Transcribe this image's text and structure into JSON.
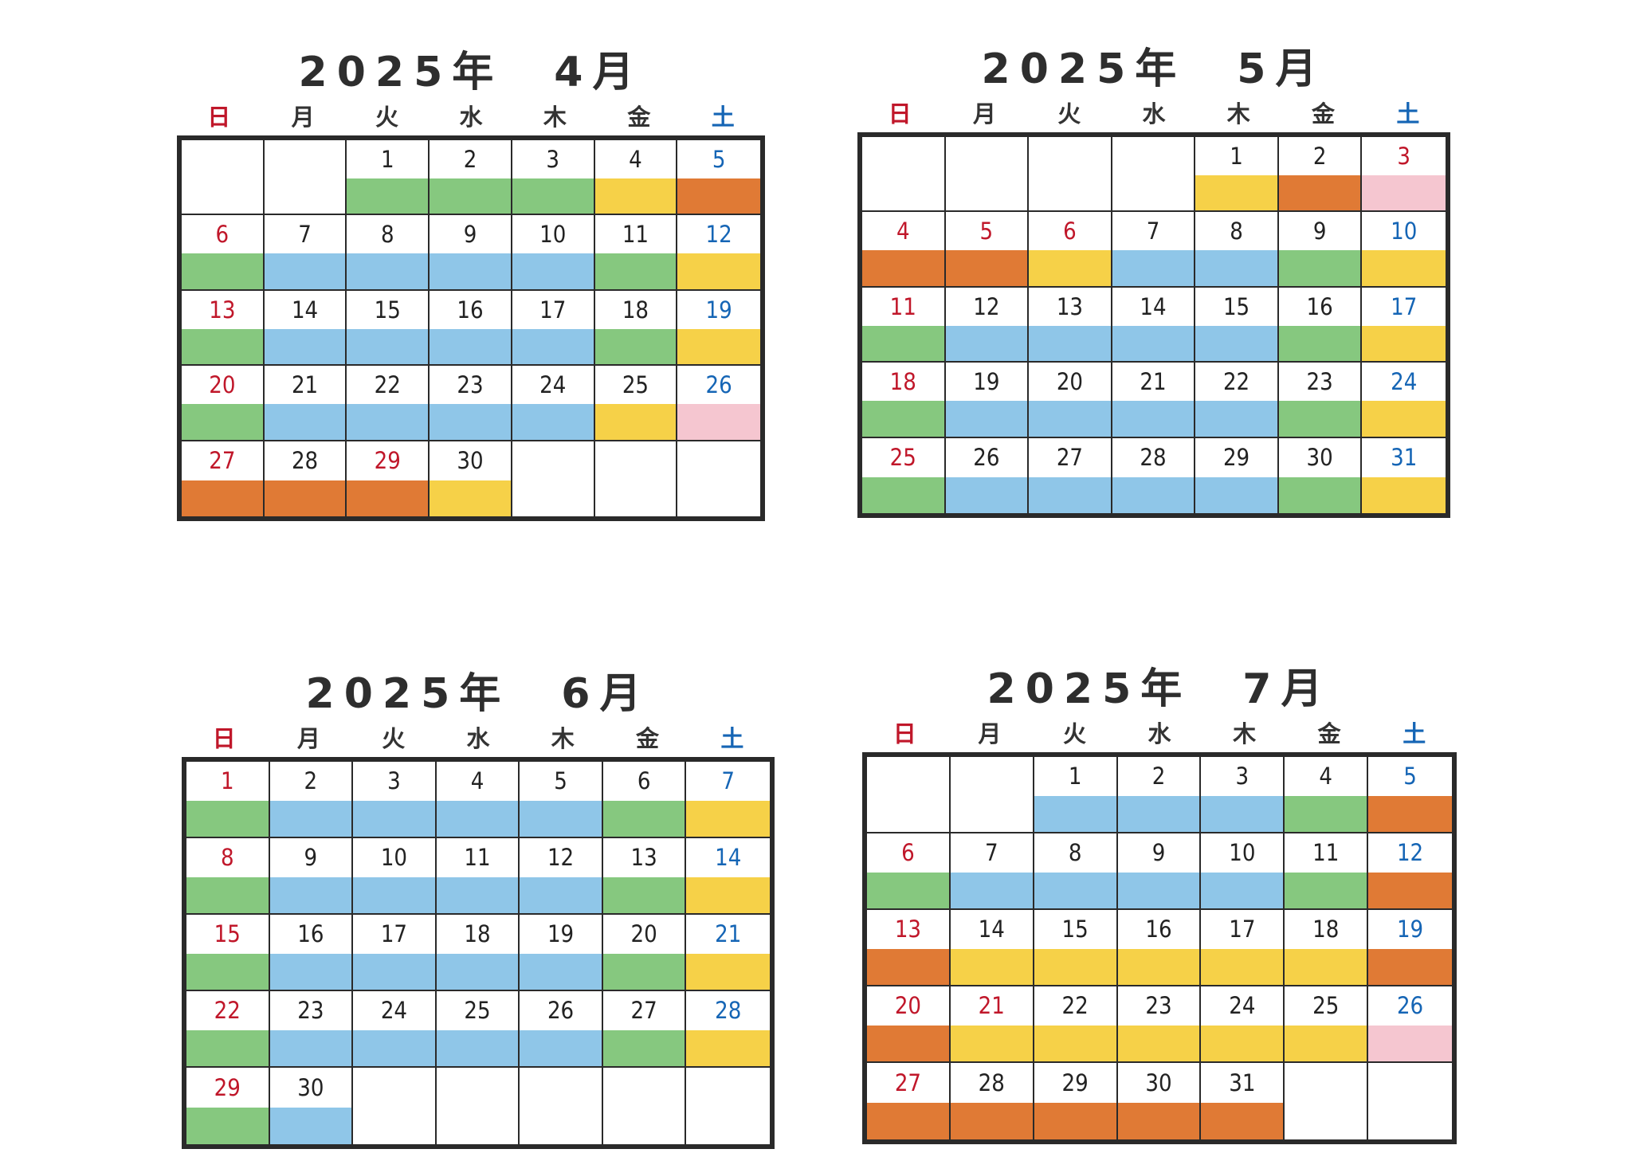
{
  "weekdays": [
    "日",
    "月",
    "火",
    "水",
    "木",
    "金",
    "土"
  ],
  "colors": {
    "sunday_text": "#c0172a",
    "saturday_text": "#1565b5",
    "weekday_text": "#222222",
    "band": {
      "blue": "#8fc6e8",
      "green": "#86c87f",
      "yellow": "#f6d148",
      "orange": "#e07a35",
      "pink": "#f5c6d0"
    }
  },
  "months": [
    {
      "title": "2025年　4月",
      "cells": [
        {
          "day": "",
          "band": ""
        },
        {
          "day": "",
          "band": ""
        },
        {
          "day": "1",
          "band": "green"
        },
        {
          "day": "2",
          "band": "green"
        },
        {
          "day": "3",
          "band": "green"
        },
        {
          "day": "4",
          "band": "yellow"
        },
        {
          "day": "5",
          "band": "orange"
        },
        {
          "day": "6",
          "band": "green"
        },
        {
          "day": "7",
          "band": "blue"
        },
        {
          "day": "8",
          "band": "blue"
        },
        {
          "day": "9",
          "band": "blue"
        },
        {
          "day": "10",
          "band": "blue"
        },
        {
          "day": "11",
          "band": "green"
        },
        {
          "day": "12",
          "band": "yellow"
        },
        {
          "day": "13",
          "band": "green"
        },
        {
          "day": "14",
          "band": "blue"
        },
        {
          "day": "15",
          "band": "blue"
        },
        {
          "day": "16",
          "band": "blue"
        },
        {
          "day": "17",
          "band": "blue"
        },
        {
          "day": "18",
          "band": "green"
        },
        {
          "day": "19",
          "band": "yellow"
        },
        {
          "day": "20",
          "band": "green"
        },
        {
          "day": "21",
          "band": "blue"
        },
        {
          "day": "22",
          "band": "blue"
        },
        {
          "day": "23",
          "band": "blue"
        },
        {
          "day": "24",
          "band": "blue"
        },
        {
          "day": "25",
          "band": "yellow"
        },
        {
          "day": "26",
          "band": "pink"
        },
        {
          "day": "27",
          "band": "orange"
        },
        {
          "day": "28",
          "band": "orange"
        },
        {
          "day": "29",
          "band": "orange",
          "holiday": true
        },
        {
          "day": "30",
          "band": "yellow"
        },
        {
          "day": "",
          "band": ""
        },
        {
          "day": "",
          "band": ""
        },
        {
          "day": "",
          "band": ""
        }
      ]
    },
    {
      "title": "2025年　5月",
      "cells": [
        {
          "day": "",
          "band": ""
        },
        {
          "day": "",
          "band": ""
        },
        {
          "day": "",
          "band": ""
        },
        {
          "day": "",
          "band": ""
        },
        {
          "day": "1",
          "band": "yellow"
        },
        {
          "day": "2",
          "band": "orange"
        },
        {
          "day": "3",
          "band": "pink",
          "holiday": true
        },
        {
          "day": "4",
          "band": "orange"
        },
        {
          "day": "5",
          "band": "orange",
          "holiday": true
        },
        {
          "day": "6",
          "band": "yellow",
          "holiday": true
        },
        {
          "day": "7",
          "band": "blue"
        },
        {
          "day": "8",
          "band": "blue"
        },
        {
          "day": "9",
          "band": "green"
        },
        {
          "day": "10",
          "band": "yellow"
        },
        {
          "day": "11",
          "band": "green"
        },
        {
          "day": "12",
          "band": "blue"
        },
        {
          "day": "13",
          "band": "blue"
        },
        {
          "day": "14",
          "band": "blue"
        },
        {
          "day": "15",
          "band": "blue"
        },
        {
          "day": "16",
          "band": "green"
        },
        {
          "day": "17",
          "band": "yellow"
        },
        {
          "day": "18",
          "band": "green"
        },
        {
          "day": "19",
          "band": "blue"
        },
        {
          "day": "20",
          "band": "blue"
        },
        {
          "day": "21",
          "band": "blue"
        },
        {
          "day": "22",
          "band": "blue"
        },
        {
          "day": "23",
          "band": "green"
        },
        {
          "day": "24",
          "band": "yellow"
        },
        {
          "day": "25",
          "band": "green"
        },
        {
          "day": "26",
          "band": "blue"
        },
        {
          "day": "27",
          "band": "blue"
        },
        {
          "day": "28",
          "band": "blue"
        },
        {
          "day": "29",
          "band": "blue"
        },
        {
          "day": "30",
          "band": "green"
        },
        {
          "day": "31",
          "band": "yellow"
        }
      ]
    },
    {
      "title": "2025年　6月",
      "cells": [
        {
          "day": "1",
          "band": "green"
        },
        {
          "day": "2",
          "band": "blue"
        },
        {
          "day": "3",
          "band": "blue"
        },
        {
          "day": "4",
          "band": "blue"
        },
        {
          "day": "5",
          "band": "blue"
        },
        {
          "day": "6",
          "band": "green"
        },
        {
          "day": "7",
          "band": "yellow"
        },
        {
          "day": "8",
          "band": "green"
        },
        {
          "day": "9",
          "band": "blue"
        },
        {
          "day": "10",
          "band": "blue"
        },
        {
          "day": "11",
          "band": "blue"
        },
        {
          "day": "12",
          "band": "blue"
        },
        {
          "day": "13",
          "band": "green"
        },
        {
          "day": "14",
          "band": "yellow"
        },
        {
          "day": "15",
          "band": "green"
        },
        {
          "day": "16",
          "band": "blue"
        },
        {
          "day": "17",
          "band": "blue"
        },
        {
          "day": "18",
          "band": "blue"
        },
        {
          "day": "19",
          "band": "blue"
        },
        {
          "day": "20",
          "band": "green"
        },
        {
          "day": "21",
          "band": "yellow"
        },
        {
          "day": "22",
          "band": "green"
        },
        {
          "day": "23",
          "band": "blue"
        },
        {
          "day": "24",
          "band": "blue"
        },
        {
          "day": "25",
          "band": "blue"
        },
        {
          "day": "26",
          "band": "blue"
        },
        {
          "day": "27",
          "band": "green"
        },
        {
          "day": "28",
          "band": "yellow"
        },
        {
          "day": "29",
          "band": "green"
        },
        {
          "day": "30",
          "band": "blue"
        },
        {
          "day": "",
          "band": ""
        },
        {
          "day": "",
          "band": ""
        },
        {
          "day": "",
          "band": ""
        },
        {
          "day": "",
          "band": ""
        },
        {
          "day": "",
          "band": ""
        }
      ]
    },
    {
      "title": "2025年　7月",
      "cells": [
        {
          "day": "",
          "band": ""
        },
        {
          "day": "",
          "band": ""
        },
        {
          "day": "1",
          "band": "blue"
        },
        {
          "day": "2",
          "band": "blue"
        },
        {
          "day": "3",
          "band": "blue"
        },
        {
          "day": "4",
          "band": "green"
        },
        {
          "day": "5",
          "band": "orange"
        },
        {
          "day": "6",
          "band": "green"
        },
        {
          "day": "7",
          "band": "blue"
        },
        {
          "day": "8",
          "band": "blue"
        },
        {
          "day": "9",
          "band": "blue"
        },
        {
          "day": "10",
          "band": "blue"
        },
        {
          "day": "11",
          "band": "green"
        },
        {
          "day": "12",
          "band": "orange"
        },
        {
          "day": "13",
          "band": "orange"
        },
        {
          "day": "14",
          "band": "yellow"
        },
        {
          "day": "15",
          "band": "yellow"
        },
        {
          "day": "16",
          "band": "yellow"
        },
        {
          "day": "17",
          "band": "yellow"
        },
        {
          "day": "18",
          "band": "yellow"
        },
        {
          "day": "19",
          "band": "orange"
        },
        {
          "day": "20",
          "band": "orange"
        },
        {
          "day": "21",
          "band": "yellow",
          "holiday": true
        },
        {
          "day": "22",
          "band": "yellow"
        },
        {
          "day": "23",
          "band": "yellow"
        },
        {
          "day": "24",
          "band": "yellow"
        },
        {
          "day": "25",
          "band": "yellow"
        },
        {
          "day": "26",
          "band": "pink"
        },
        {
          "day": "27",
          "band": "orange"
        },
        {
          "day": "28",
          "band": "orange"
        },
        {
          "day": "29",
          "band": "orange"
        },
        {
          "day": "30",
          "band": "orange"
        },
        {
          "day": "31",
          "band": "orange"
        },
        {
          "day": "",
          "band": ""
        },
        {
          "day": "",
          "band": ""
        }
      ]
    }
  ]
}
